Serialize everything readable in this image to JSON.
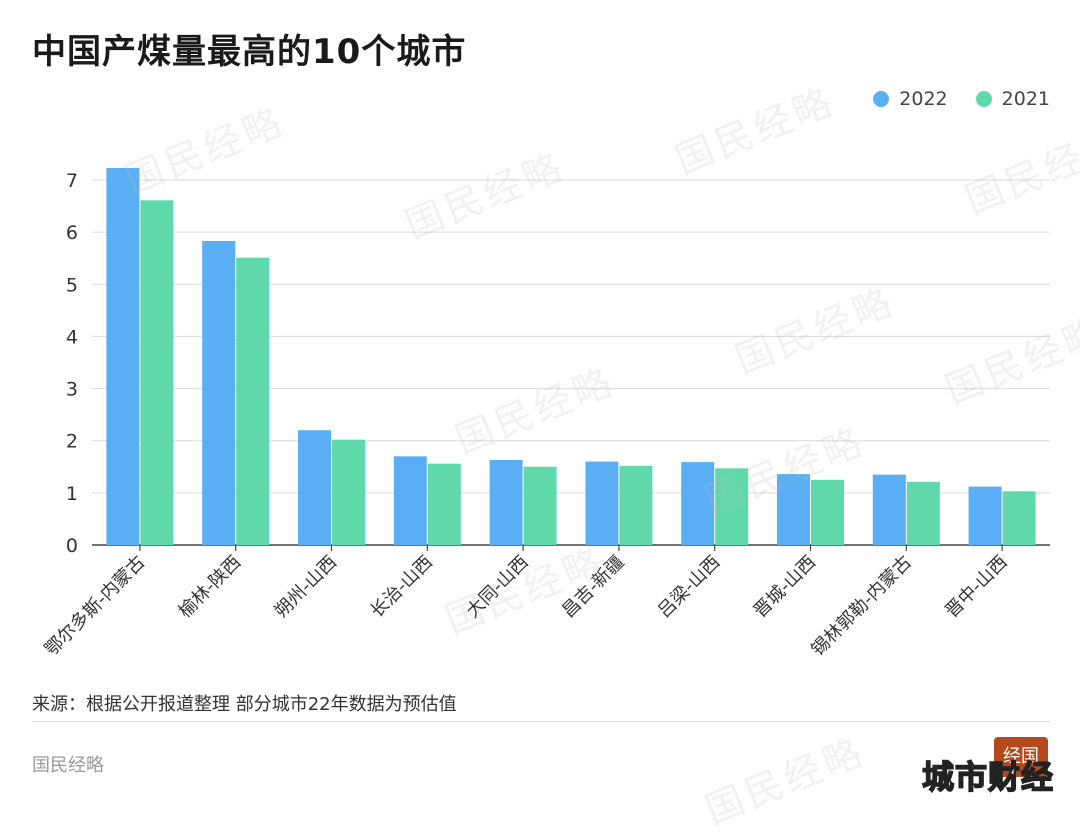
{
  "title": "中国产煤量最高的10个城市",
  "legend": {
    "label_2022": "2022",
    "label_2021": "2021"
  },
  "colors": {
    "series_2022": "#5aaef3",
    "series_2021": "#5fd9a9",
    "grid": "#d9d9d9",
    "axis": "#444444"
  },
  "chart_data": {
    "type": "bar",
    "categories": [
      "鄂尔多斯-内蒙古",
      "榆林-陕西",
      "朔州-山西",
      "长治-山西",
      "大同-山西",
      "昌吉-新疆",
      "吕梁-山西",
      "晋城-山西",
      "锡林郭勒-内蒙古",
      "晋中-山西"
    ],
    "series": [
      {
        "name": "2022",
        "values": [
          7.23,
          5.83,
          2.2,
          1.7,
          1.63,
          1.6,
          1.59,
          1.36,
          1.35,
          1.12
        ]
      },
      {
        "name": "2021",
        "values": [
          6.61,
          5.51,
          2.02,
          1.56,
          1.5,
          1.52,
          1.47,
          1.25,
          1.21,
          1.03
        ]
      }
    ],
    "ylim": [
      0,
      7
    ],
    "yticks": [
      "0",
      "1",
      "2",
      "3",
      "4",
      "5",
      "6",
      "7"
    ],
    "grid": true,
    "legend_position": "top-right"
  },
  "source_note": "来源：根据公开报道整理 部分城市22年数据为预估值",
  "brand": "国民经略",
  "watermark_text": "国民经略",
  "badge_text": "经国",
  "corner_mark": "城市财经"
}
